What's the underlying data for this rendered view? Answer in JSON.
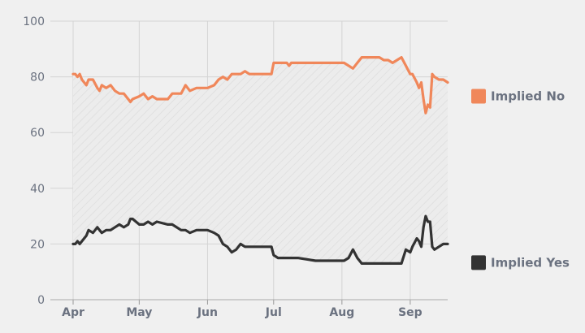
{
  "chart_data": {
    "type": "line",
    "title": "",
    "xlabel": "",
    "ylabel": "",
    "ylim": [
      0,
      100
    ],
    "y_ticks": [
      0,
      20,
      40,
      60,
      80,
      100
    ],
    "x_ticks": [
      {
        "date": "2023-04-01",
        "label": "Apr"
      },
      {
        "date": "2023-05-01",
        "label": "May"
      },
      {
        "date": "2023-06-01",
        "label": "Jun"
      },
      {
        "date": "2023-07-01",
        "label": "Jul"
      },
      {
        "date": "2023-08-01",
        "label": "Aug"
      },
      {
        "date": "2023-09-01",
        "label": "Sep"
      }
    ],
    "x_range": [
      "2023-04-01",
      "2023-09-18"
    ],
    "grid": true,
    "shaded_between_series": true,
    "legend_placement": "right",
    "series": [
      {
        "name": "Implied No",
        "color": "#f0875a",
        "points": [
          [
            "2023-04-01",
            81
          ],
          [
            "2023-04-02",
            81
          ],
          [
            "2023-04-03",
            80
          ],
          [
            "2023-04-04",
            81
          ],
          [
            "2023-04-05",
            79
          ],
          [
            "2023-04-07",
            77
          ],
          [
            "2023-04-08",
            79
          ],
          [
            "2023-04-10",
            79
          ],
          [
            "2023-04-12",
            76
          ],
          [
            "2023-04-13",
            75
          ],
          [
            "2023-04-14",
            77
          ],
          [
            "2023-04-16",
            76
          ],
          [
            "2023-04-18",
            77
          ],
          [
            "2023-04-20",
            75
          ],
          [
            "2023-04-22",
            74
          ],
          [
            "2023-04-24",
            74
          ],
          [
            "2023-04-26",
            72
          ],
          [
            "2023-04-27",
            71
          ],
          [
            "2023-04-28",
            72
          ],
          [
            "2023-05-01",
            73
          ],
          [
            "2023-05-03",
            74
          ],
          [
            "2023-05-05",
            72
          ],
          [
            "2023-05-07",
            73
          ],
          [
            "2023-05-09",
            72
          ],
          [
            "2023-05-14",
            72
          ],
          [
            "2023-05-16",
            74
          ],
          [
            "2023-05-20",
            74
          ],
          [
            "2023-05-22",
            77
          ],
          [
            "2023-05-24",
            75
          ],
          [
            "2023-05-27",
            76
          ],
          [
            "2023-06-01",
            76
          ],
          [
            "2023-06-04",
            77
          ],
          [
            "2023-06-06",
            79
          ],
          [
            "2023-06-08",
            80
          ],
          [
            "2023-06-10",
            79
          ],
          [
            "2023-06-12",
            81
          ],
          [
            "2023-06-14",
            81
          ],
          [
            "2023-06-16",
            81
          ],
          [
            "2023-06-18",
            82
          ],
          [
            "2023-06-20",
            81
          ],
          [
            "2023-06-25",
            81
          ],
          [
            "2023-06-30",
            81
          ],
          [
            "2023-07-01",
            85
          ],
          [
            "2023-07-07",
            85
          ],
          [
            "2023-07-08",
            84
          ],
          [
            "2023-07-09",
            85
          ],
          [
            "2023-07-20",
            85
          ],
          [
            "2023-07-31",
            85
          ],
          [
            "2023-08-02",
            85
          ],
          [
            "2023-08-04",
            84
          ],
          [
            "2023-08-06",
            83
          ],
          [
            "2023-08-08",
            85
          ],
          [
            "2023-08-10",
            87
          ],
          [
            "2023-08-15",
            87
          ],
          [
            "2023-08-18",
            87
          ],
          [
            "2023-08-20",
            86
          ],
          [
            "2023-08-22",
            86
          ],
          [
            "2023-08-24",
            85
          ],
          [
            "2023-08-26",
            86
          ],
          [
            "2023-08-28",
            87
          ],
          [
            "2023-08-30",
            84
          ],
          [
            "2023-09-01",
            81
          ],
          [
            "2023-09-02",
            81
          ],
          [
            "2023-09-04",
            78
          ],
          [
            "2023-09-05",
            76
          ],
          [
            "2023-09-06",
            78
          ],
          [
            "2023-09-07",
            72
          ],
          [
            "2023-09-08",
            67
          ],
          [
            "2023-09-09",
            70
          ],
          [
            "2023-09-10",
            69
          ],
          [
            "2023-09-11",
            81
          ],
          [
            "2023-09-12",
            80
          ],
          [
            "2023-09-14",
            79
          ],
          [
            "2023-09-16",
            79
          ],
          [
            "2023-09-18",
            78
          ]
        ]
      },
      {
        "name": "Implied Yes",
        "color": "#333333",
        "points": [
          [
            "2023-04-01",
            20
          ],
          [
            "2023-04-02",
            20
          ],
          [
            "2023-04-03",
            21
          ],
          [
            "2023-04-04",
            20
          ],
          [
            "2023-04-05",
            21
          ],
          [
            "2023-04-07",
            23
          ],
          [
            "2023-04-08",
            25
          ],
          [
            "2023-04-10",
            24
          ],
          [
            "2023-04-12",
            26
          ],
          [
            "2023-04-13",
            25
          ],
          [
            "2023-04-14",
            24
          ],
          [
            "2023-04-16",
            25
          ],
          [
            "2023-04-18",
            25
          ],
          [
            "2023-04-20",
            26
          ],
          [
            "2023-04-22",
            27
          ],
          [
            "2023-04-24",
            26
          ],
          [
            "2023-04-26",
            27
          ],
          [
            "2023-04-27",
            29
          ],
          [
            "2023-04-28",
            29
          ],
          [
            "2023-05-01",
            27
          ],
          [
            "2023-05-03",
            27
          ],
          [
            "2023-05-05",
            28
          ],
          [
            "2023-05-07",
            27
          ],
          [
            "2023-05-09",
            28
          ],
          [
            "2023-05-14",
            27
          ],
          [
            "2023-05-16",
            27
          ],
          [
            "2023-05-20",
            25
          ],
          [
            "2023-05-22",
            25
          ],
          [
            "2023-05-24",
            24
          ],
          [
            "2023-05-27",
            25
          ],
          [
            "2023-06-01",
            25
          ],
          [
            "2023-06-04",
            24
          ],
          [
            "2023-06-06",
            23
          ],
          [
            "2023-06-08",
            20
          ],
          [
            "2023-06-10",
            19
          ],
          [
            "2023-06-12",
            17
          ],
          [
            "2023-06-14",
            18
          ],
          [
            "2023-06-16",
            20
          ],
          [
            "2023-06-18",
            19
          ],
          [
            "2023-06-20",
            19
          ],
          [
            "2023-06-25",
            19
          ],
          [
            "2023-06-30",
            19
          ],
          [
            "2023-07-01",
            16
          ],
          [
            "2023-07-03",
            15
          ],
          [
            "2023-07-07",
            15
          ],
          [
            "2023-07-09",
            15
          ],
          [
            "2023-07-12",
            15
          ],
          [
            "2023-07-20",
            14
          ],
          [
            "2023-07-31",
            14
          ],
          [
            "2023-08-02",
            14
          ],
          [
            "2023-08-04",
            15
          ],
          [
            "2023-08-06",
            18
          ],
          [
            "2023-08-08",
            15
          ],
          [
            "2023-08-10",
            13
          ],
          [
            "2023-08-15",
            13
          ],
          [
            "2023-08-18",
            13
          ],
          [
            "2023-08-20",
            13
          ],
          [
            "2023-08-22",
            13
          ],
          [
            "2023-08-24",
            13
          ],
          [
            "2023-08-26",
            13
          ],
          [
            "2023-08-28",
            13
          ],
          [
            "2023-08-30",
            18
          ],
          [
            "2023-09-01",
            17
          ],
          [
            "2023-09-02",
            19
          ],
          [
            "2023-09-04",
            22
          ],
          [
            "2023-09-05",
            21
          ],
          [
            "2023-09-06",
            19
          ],
          [
            "2023-09-07",
            26
          ],
          [
            "2023-09-08",
            30
          ],
          [
            "2023-09-09",
            28
          ],
          [
            "2023-09-10",
            28
          ],
          [
            "2023-09-11",
            19
          ],
          [
            "2023-09-12",
            18
          ],
          [
            "2023-09-14",
            19
          ],
          [
            "2023-09-16",
            20
          ],
          [
            "2023-09-18",
            20
          ]
        ]
      }
    ]
  }
}
